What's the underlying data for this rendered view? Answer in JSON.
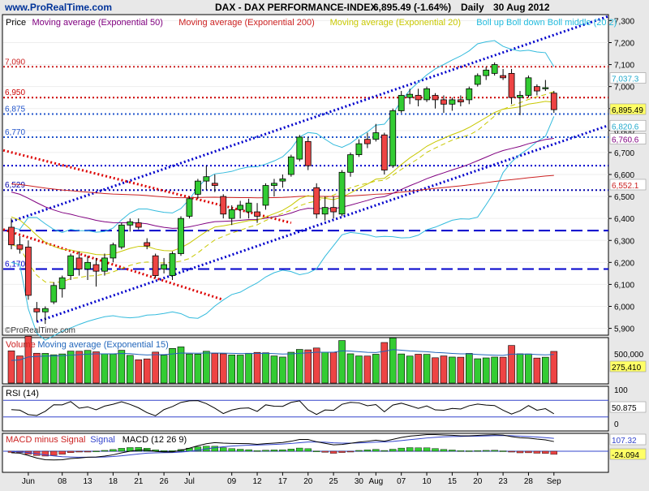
{
  "header": {
    "site": "www.ProRealTime.com",
    "title": "DAX - DAX PERFORMANCE-INDEX",
    "price_change": "6,895.49 (-1.64%)",
    "period": "Daily",
    "date": "30 Aug 2012"
  },
  "watermark": "©ProRealTime.com",
  "price_legend": [
    {
      "text": "Price",
      "color": "#000000"
    },
    {
      "text": "Moving average (Exponential 50)",
      "color": "#800080"
    },
    {
      "text": "Moving average (Exponential 200)",
      "color": "#cc2222"
    },
    {
      "text": "Moving average (Exponential 20)",
      "color": "#c8c800"
    },
    {
      "text": "Boll up Boll down Boll middle (20 2)",
      "color": "#22bbdd"
    }
  ],
  "price_axis_ticks": [
    "7,300",
    "7,200",
    "7,100",
    "7,000",
    "6,900",
    "6,800",
    "6,700",
    "6,600",
    "6,500",
    "6,400",
    "6,300",
    "6,200",
    "6,100",
    "6,000",
    "5,900"
  ],
  "price_axis_labels": [
    {
      "text": "7,037.3",
      "value": 7037.3,
      "fill": "#ffffff",
      "color": "#22aacc"
    },
    {
      "text": "6,895.49",
      "value": 6895.49,
      "fill": "#ffff66",
      "color": "#000000"
    },
    {
      "text": "6,820.6",
      "value": 6820.6,
      "fill": "#ffffff",
      "color": "#22aacc"
    },
    {
      "text": "6,760.6",
      "value": 6760.6,
      "fill": "#ffffff",
      "color": "#800080"
    },
    {
      "text": "6,552.1",
      "value": 6552.1,
      "fill": "#ffffff",
      "color": "#cc2222"
    }
  ],
  "levels": [
    {
      "text": "7,090",
      "value": 7090,
      "color": "#cc2222",
      "style": "dotted"
    },
    {
      "text": "6,950",
      "value": 6950,
      "color": "#cc0000",
      "style": "dotted"
    },
    {
      "text": "6,875",
      "value": 6875,
      "color": "#2255cc",
      "style": "dotted"
    },
    {
      "text": "6,770",
      "value": 6770,
      "color": "#2255cc",
      "style": "dotted"
    },
    {
      "text": "",
      "value": 6640,
      "color": "#0000cc",
      "style": "dotted"
    },
    {
      "text": "6,529",
      "value": 6529,
      "color": "#0000aa",
      "style": "dotted"
    },
    {
      "text": "",
      "value": 6345,
      "color": "#0000cc",
      "style": "dashed"
    },
    {
      "text": "6,170",
      "value": 6170,
      "color": "#0000cc",
      "style": "dashed"
    }
  ],
  "x_axis": {
    "labels": [
      {
        "text": "Jun",
        "index": 2
      },
      {
        "text": "08",
        "index": 6
      },
      {
        "text": "13",
        "index": 9
      },
      {
        "text": "18",
        "index": 12
      },
      {
        "text": "21",
        "index": 15
      },
      {
        "text": "26",
        "index": 18
      },
      {
        "text": "Jul",
        "index": 21
      },
      {
        "text": "09",
        "index": 26
      },
      {
        "text": "12",
        "index": 29
      },
      {
        "text": "17",
        "index": 32
      },
      {
        "text": "20",
        "index": 35
      },
      {
        "text": "25",
        "index": 38
      },
      {
        "text": "30",
        "index": 41
      },
      {
        "text": "Aug",
        "index": 43
      },
      {
        "text": "07",
        "index": 46
      },
      {
        "text": "10",
        "index": 49
      },
      {
        "text": "15",
        "index": 52
      },
      {
        "text": "20",
        "index": 55
      },
      {
        "text": "23",
        "index": 58
      },
      {
        "text": "28",
        "index": 61
      },
      {
        "text": "Sep",
        "index": 64
      }
    ]
  },
  "volume_panel": {
    "legend": [
      {
        "text": "Volume",
        "color": "#cc2222"
      },
      {
        "text": "Moving average (Exponential 15)",
        "color": "#2266bb"
      }
    ],
    "ticks": [
      "500,000"
    ],
    "current_label": "275,410"
  },
  "rsi_panel": {
    "legend": [
      {
        "text": "RSI (14)",
        "color": "#000000"
      }
    ],
    "ticks": [
      "100",
      "0"
    ],
    "current_label": "50.875"
  },
  "macd_panel": {
    "legend": [
      {
        "text": "MACD minus Signal",
        "color": "#cc2222"
      },
      {
        "text": "Signal",
        "color": "#3344cc"
      },
      {
        "text": "MACD (12 26 9)",
        "color": "#000000"
      }
    ],
    "labels": [
      "107.32",
      "-24.094"
    ]
  },
  "chart_data": {
    "type": "candlestick",
    "title": "DAX - DAX PERFORMANCE-INDEX",
    "ylim": [
      5880,
      7320
    ],
    "candles": [
      {
        "o": 6360,
        "h": 6400,
        "l": 6260,
        "c": 6280
      },
      {
        "o": 6280,
        "h": 6320,
        "l": 6240,
        "c": 6260
      },
      {
        "o": 6270,
        "h": 6300,
        "l": 6030,
        "c": 6050
      },
      {
        "o": 5990,
        "h": 6020,
        "l": 5930,
        "c": 5975
      },
      {
        "o": 5975,
        "h": 6000,
        "l": 5920,
        "c": 5990
      },
      {
        "o": 6020,
        "h": 6110,
        "l": 6010,
        "c": 6095
      },
      {
        "o": 6080,
        "h": 6140,
        "l": 6040,
        "c": 6130
      },
      {
        "o": 6140,
        "h": 6240,
        "l": 6120,
        "c": 6230
      },
      {
        "o": 6220,
        "h": 6250,
        "l": 6140,
        "c": 6170
      },
      {
        "o": 6170,
        "h": 6230,
        "l": 6120,
        "c": 6200
      },
      {
        "o": 6190,
        "h": 6220,
        "l": 6090,
        "c": 6160
      },
      {
        "o": 6160,
        "h": 6240,
        "l": 6140,
        "c": 6220
      },
      {
        "o": 6220,
        "h": 6290,
        "l": 6200,
        "c": 6280
      },
      {
        "o": 6270,
        "h": 6380,
        "l": 6260,
        "c": 6370
      },
      {
        "o": 6370,
        "h": 6400,
        "l": 6340,
        "c": 6385
      },
      {
        "o": 6380,
        "h": 6400,
        "l": 6350,
        "c": 6360
      },
      {
        "o": 6290,
        "h": 6310,
        "l": 6260,
        "c": 6275
      },
      {
        "o": 6230,
        "h": 6240,
        "l": 6130,
        "c": 6140
      },
      {
        "o": 6170,
        "h": 6220,
        "l": 6150,
        "c": 6190
      },
      {
        "o": 6140,
        "h": 6250,
        "l": 6120,
        "c": 6240
      },
      {
        "o": 6240,
        "h": 6410,
        "l": 6230,
        "c": 6400
      },
      {
        "o": 6410,
        "h": 6500,
        "l": 6400,
        "c": 6490
      },
      {
        "o": 6510,
        "h": 6580,
        "l": 6490,
        "c": 6570
      },
      {
        "o": 6570,
        "h": 6640,
        "l": 6530,
        "c": 6590
      },
      {
        "o": 6560,
        "h": 6600,
        "l": 6520,
        "c": 6550
      },
      {
        "o": 6500,
        "h": 6510,
        "l": 6400,
        "c": 6420
      },
      {
        "o": 6400,
        "h": 6460,
        "l": 6370,
        "c": 6440
      },
      {
        "o": 6440,
        "h": 6480,
        "l": 6400,
        "c": 6460
      },
      {
        "o": 6430,
        "h": 6490,
        "l": 6400,
        "c": 6470
      },
      {
        "o": 6430,
        "h": 6470,
        "l": 6380,
        "c": 6410
      },
      {
        "o": 6460,
        "h": 6560,
        "l": 6440,
        "c": 6550
      },
      {
        "o": 6550,
        "h": 6580,
        "l": 6500,
        "c": 6560
      },
      {
        "o": 6570,
        "h": 6600,
        "l": 6540,
        "c": 6580
      },
      {
        "o": 6600,
        "h": 6690,
        "l": 6590,
        "c": 6680
      },
      {
        "o": 6670,
        "h": 6780,
        "l": 6660,
        "c": 6770
      },
      {
        "o": 6750,
        "h": 6770,
        "l": 6620,
        "c": 6640
      },
      {
        "o": 6540,
        "h": 6560,
        "l": 6400,
        "c": 6420
      },
      {
        "o": 6420,
        "h": 6500,
        "l": 6390,
        "c": 6450
      },
      {
        "o": 6450,
        "h": 6500,
        "l": 6400,
        "c": 6430
      },
      {
        "o": 6420,
        "h": 6620,
        "l": 6410,
        "c": 6610
      },
      {
        "o": 6610,
        "h": 6700,
        "l": 6590,
        "c": 6690
      },
      {
        "o": 6690,
        "h": 6760,
        "l": 6680,
        "c": 6740
      },
      {
        "o": 6760,
        "h": 6790,
        "l": 6720,
        "c": 6740
      },
      {
        "o": 6760,
        "h": 6830,
        "l": 6750,
        "c": 6790
      },
      {
        "o": 6780,
        "h": 6790,
        "l": 6600,
        "c": 6620
      },
      {
        "o": 6640,
        "h": 6900,
        "l": 6630,
        "c": 6890
      },
      {
        "o": 6890,
        "h": 6980,
        "l": 6880,
        "c": 6960
      },
      {
        "o": 6950,
        "h": 6990,
        "l": 6920,
        "c": 6965
      },
      {
        "o": 6960,
        "h": 6990,
        "l": 6910,
        "c": 6940
      },
      {
        "o": 6940,
        "h": 7000,
        "l": 6930,
        "c": 6990
      },
      {
        "o": 6960,
        "h": 6970,
        "l": 6900,
        "c": 6940
      },
      {
        "o": 6940,
        "h": 6960,
        "l": 6880,
        "c": 6920
      },
      {
        "o": 6920,
        "h": 6950,
        "l": 6890,
        "c": 6940
      },
      {
        "o": 6940,
        "h": 6960,
        "l": 6910,
        "c": 6930
      },
      {
        "o": 6940,
        "h": 7000,
        "l": 6920,
        "c": 6990
      },
      {
        "o": 7010,
        "h": 7060,
        "l": 7000,
        "c": 7050
      },
      {
        "o": 7050,
        "h": 7090,
        "l": 7030,
        "c": 7075
      },
      {
        "o": 7060,
        "h": 7110,
        "l": 7050,
        "c": 7100
      },
      {
        "o": 7050,
        "h": 7080,
        "l": 7030,
        "c": 7040
      },
      {
        "o": 7060,
        "h": 7080,
        "l": 6920,
        "c": 6950
      },
      {
        "o": 6950,
        "h": 6980,
        "l": 6870,
        "c": 6960
      },
      {
        "o": 6960,
        "h": 7050,
        "l": 6950,
        "c": 7040
      },
      {
        "o": 7000,
        "h": 7010,
        "l": 6960,
        "c": 6980
      },
      {
        "o": 6990,
        "h": 7030,
        "l": 6980,
        "c": 6995
      },
      {
        "o": 6970,
        "h": 6980,
        "l": 6880,
        "c": 6895
      }
    ]
  }
}
